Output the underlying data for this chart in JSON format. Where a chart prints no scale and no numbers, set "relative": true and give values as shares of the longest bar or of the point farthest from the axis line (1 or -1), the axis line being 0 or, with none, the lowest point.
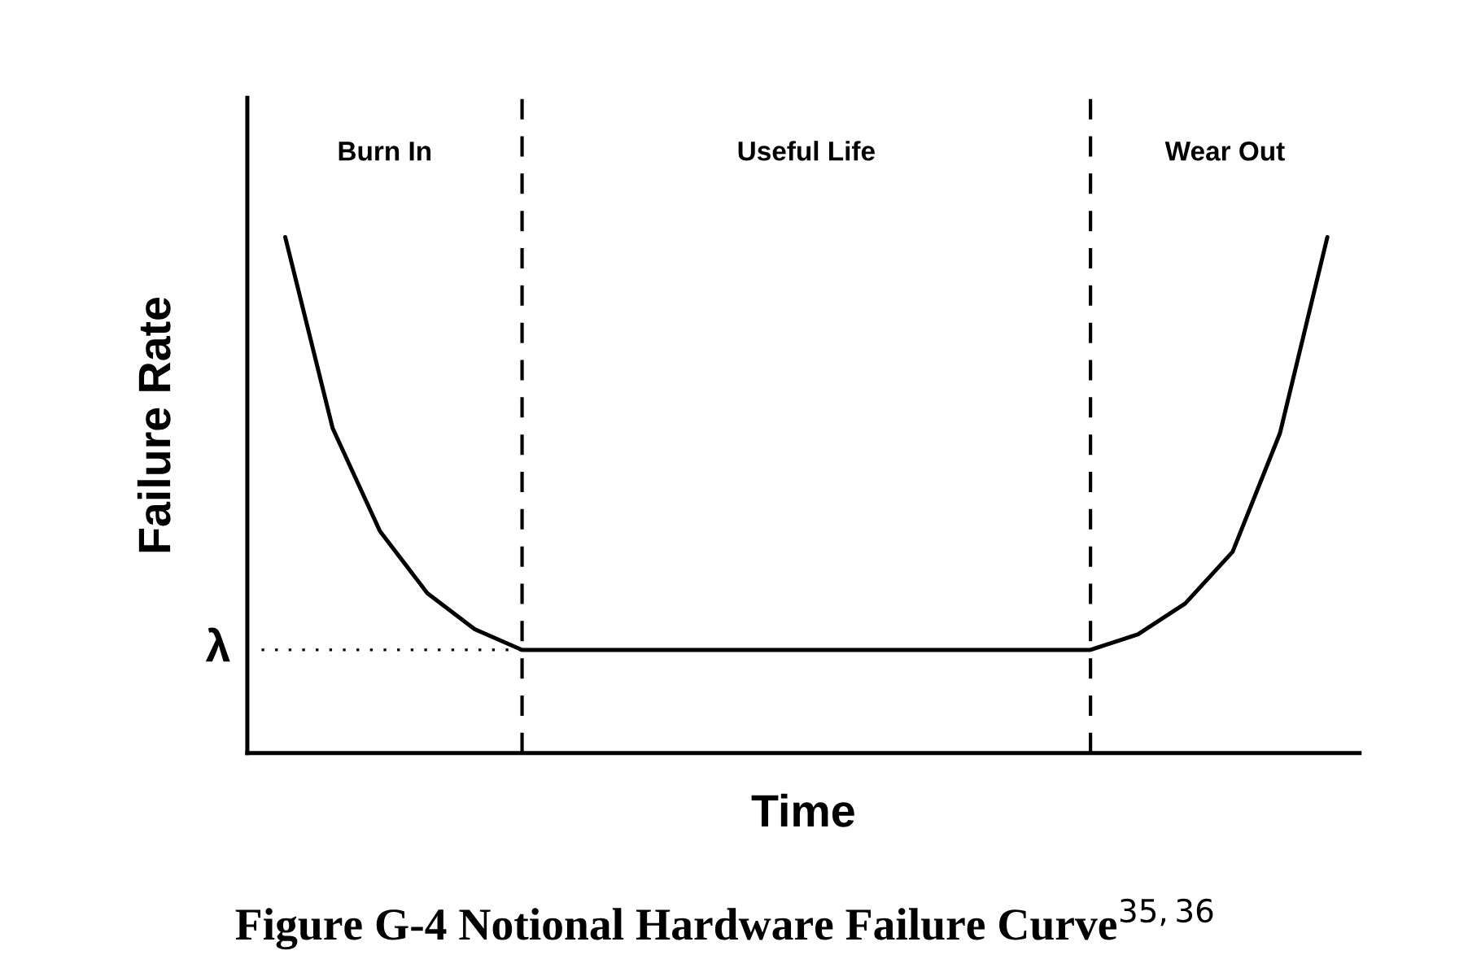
{
  "chart_data": {
    "type": "line",
    "title": "Figure G-4 Notional Hardware Failure Curve$^{35,36}$",
    "xlabel": "Time",
    "ylabel": "Failure Rate",
    "relative": true,
    "tick_labels": false,
    "legend": false,
    "marker": "none",
    "line_style": "solid",
    "color": "#000000",
    "categories": [
      null,
      null,
      null,
      null,
      null,
      null,
      null,
      null,
      null,
      null,
      null,
      null,
      null,
      null,
      null,
      null,
      null,
      null,
      null,
      null,
      null,
      null,
      null
    ],
    "values": [
      1.0,
      0.63,
      0.43,
      0.31,
      0.24,
      0.2,
      0.2,
      0.2,
      0.2,
      0.2,
      0.2,
      0.2,
      0.2,
      0.2,
      0.2,
      0.2,
      0.2,
      0.2,
      0.23,
      0.29,
      0.39,
      0.62,
      1.0
    ],
    "ref_lines": [
      {
        "axis": "y",
        "value": 0.2,
        "label": "λ",
        "line_style": "dotted",
        "color": "#000000"
      }
    ],
    "annotations": [
      "Burn In",
      "Useful Life",
      "Wear Out"
    ]
  }
}
